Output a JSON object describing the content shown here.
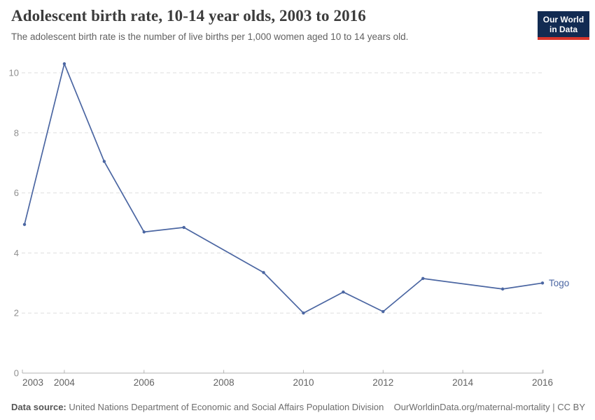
{
  "header": {
    "title": "Adolescent birth rate, 10-14 year olds, 2003 to 2016",
    "subtitle": "The adolescent birth rate is the number of live births per 1,000 women aged 10 to 14 years old.",
    "logo": {
      "line1": "Our World",
      "line2": "in Data",
      "bg_color": "#122b52",
      "accent_color": "#d8352b"
    }
  },
  "chart_data": {
    "type": "line",
    "title": "Adolescent birth rate, 10-14 year olds, 2003 to 2016",
    "xlabel": "",
    "ylabel": "",
    "xlim": [
      2003,
      2016
    ],
    "ylim": [
      0,
      10.35
    ],
    "x_ticks": [
      2003,
      2004,
      2006,
      2008,
      2010,
      2012,
      2014,
      2016
    ],
    "y_ticks": [
      0,
      2,
      4,
      6,
      8,
      10
    ],
    "grid": "horizontal-dashed",
    "legend_position": "end-of-line-label",
    "series": [
      {
        "name": "Togo",
        "color": "#4b66a2",
        "points": [
          {
            "year": 2003,
            "value": 4.95
          },
          {
            "year": 2004,
            "value": 10.3
          },
          {
            "year": 2005,
            "value": 7.05
          },
          {
            "year": 2006,
            "value": 4.7
          },
          {
            "year": 2007,
            "value": 4.85
          },
          {
            "year": 2009,
            "value": 3.35
          },
          {
            "year": 2010,
            "value": 2.0
          },
          {
            "year": 2011,
            "value": 2.7
          },
          {
            "year": 2012,
            "value": 2.05
          },
          {
            "year": 2013,
            "value": 3.15
          },
          {
            "year": 2015,
            "value": 2.8
          },
          {
            "year": 2016,
            "value": 3.0
          }
        ]
      }
    ],
    "colors": {
      "gridline": "#dedede",
      "axis": "#b3b3b3",
      "y_tick_label": "#8f8f8f",
      "x_tick_label": "#636363"
    }
  },
  "footer": {
    "source_label": "Data source:",
    "source_text": " United Nations Department of Economic and Social Affairs Population Division",
    "credit": "OurWorldinData.org/maternal-mortality | CC BY"
  }
}
